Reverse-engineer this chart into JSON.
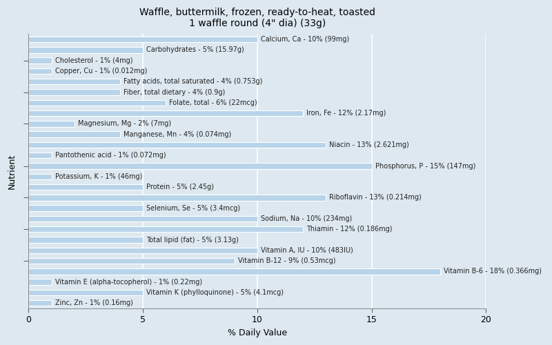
{
  "title": "Waffle, buttermilk, frozen, ready-to-heat, toasted\n1 waffle round (4\" dia) (33g)",
  "xlabel": "% Daily Value",
  "ylabel": "Nutrient",
  "xlim": [
    0,
    20
  ],
  "background_color": "#dde8f0",
  "plot_bg_color": "#dde8f0",
  "bar_color": "#b8d4ea",
  "bar_edge_color": "#ffffff",
  "title_fontsize": 10,
  "label_fontsize": 7,
  "nutrients": [
    {
      "label": "Calcium, Ca - 10% (99mg)",
      "value": 10
    },
    {
      "label": "Carbohydrates - 5% (15.97g)",
      "value": 5
    },
    {
      "label": "Cholesterol - 1% (4mg)",
      "value": 1
    },
    {
      "label": "Copper, Cu - 1% (0.012mg)",
      "value": 1
    },
    {
      "label": "Fatty acids, total saturated - 4% (0.753g)",
      "value": 4
    },
    {
      "label": "Fiber, total dietary - 4% (0.9g)",
      "value": 4
    },
    {
      "label": "Folate, total - 6% (22mcg)",
      "value": 6
    },
    {
      "label": "Iron, Fe - 12% (2.17mg)",
      "value": 12
    },
    {
      "label": "Magnesium, Mg - 2% (7mg)",
      "value": 2
    },
    {
      "label": "Manganese, Mn - 4% (0.074mg)",
      "value": 4
    },
    {
      "label": "Niacin - 13% (2.621mg)",
      "value": 13
    },
    {
      "label": "Pantothenic acid - 1% (0.072mg)",
      "value": 1
    },
    {
      "label": "Phosphorus, P - 15% (147mg)",
      "value": 15
    },
    {
      "label": "Potassium, K - 1% (46mg)",
      "value": 1
    },
    {
      "label": "Protein - 5% (2.45g)",
      "value": 5
    },
    {
      "label": "Riboflavin - 13% (0.214mg)",
      "value": 13
    },
    {
      "label": "Selenium, Se - 5% (3.4mcg)",
      "value": 5
    },
    {
      "label": "Sodium, Na - 10% (234mg)",
      "value": 10
    },
    {
      "label": "Thiamin - 12% (0.186mg)",
      "value": 12
    },
    {
      "label": "Total lipid (fat) - 5% (3.13g)",
      "value": 5
    },
    {
      "label": "Vitamin A, IU - 10% (483IU)",
      "value": 10
    },
    {
      "label": "Vitamin B-12 - 9% (0.53mcg)",
      "value": 9
    },
    {
      "label": "Vitamin B-6 - 18% (0.366mg)",
      "value": 18
    },
    {
      "label": "Vitamin E (alpha-tocopherol) - 1% (0.22mg)",
      "value": 1
    },
    {
      "label": "Vitamin K (phylloquinone) - 5% (4.1mcg)",
      "value": 5
    },
    {
      "label": "Zinc, Zn - 1% (0.16mg)",
      "value": 1
    }
  ],
  "tick_positions": [
    4,
    7,
    10,
    13,
    17,
    20,
    23
  ],
  "xticks": [
    0,
    5,
    10,
    15,
    20
  ]
}
